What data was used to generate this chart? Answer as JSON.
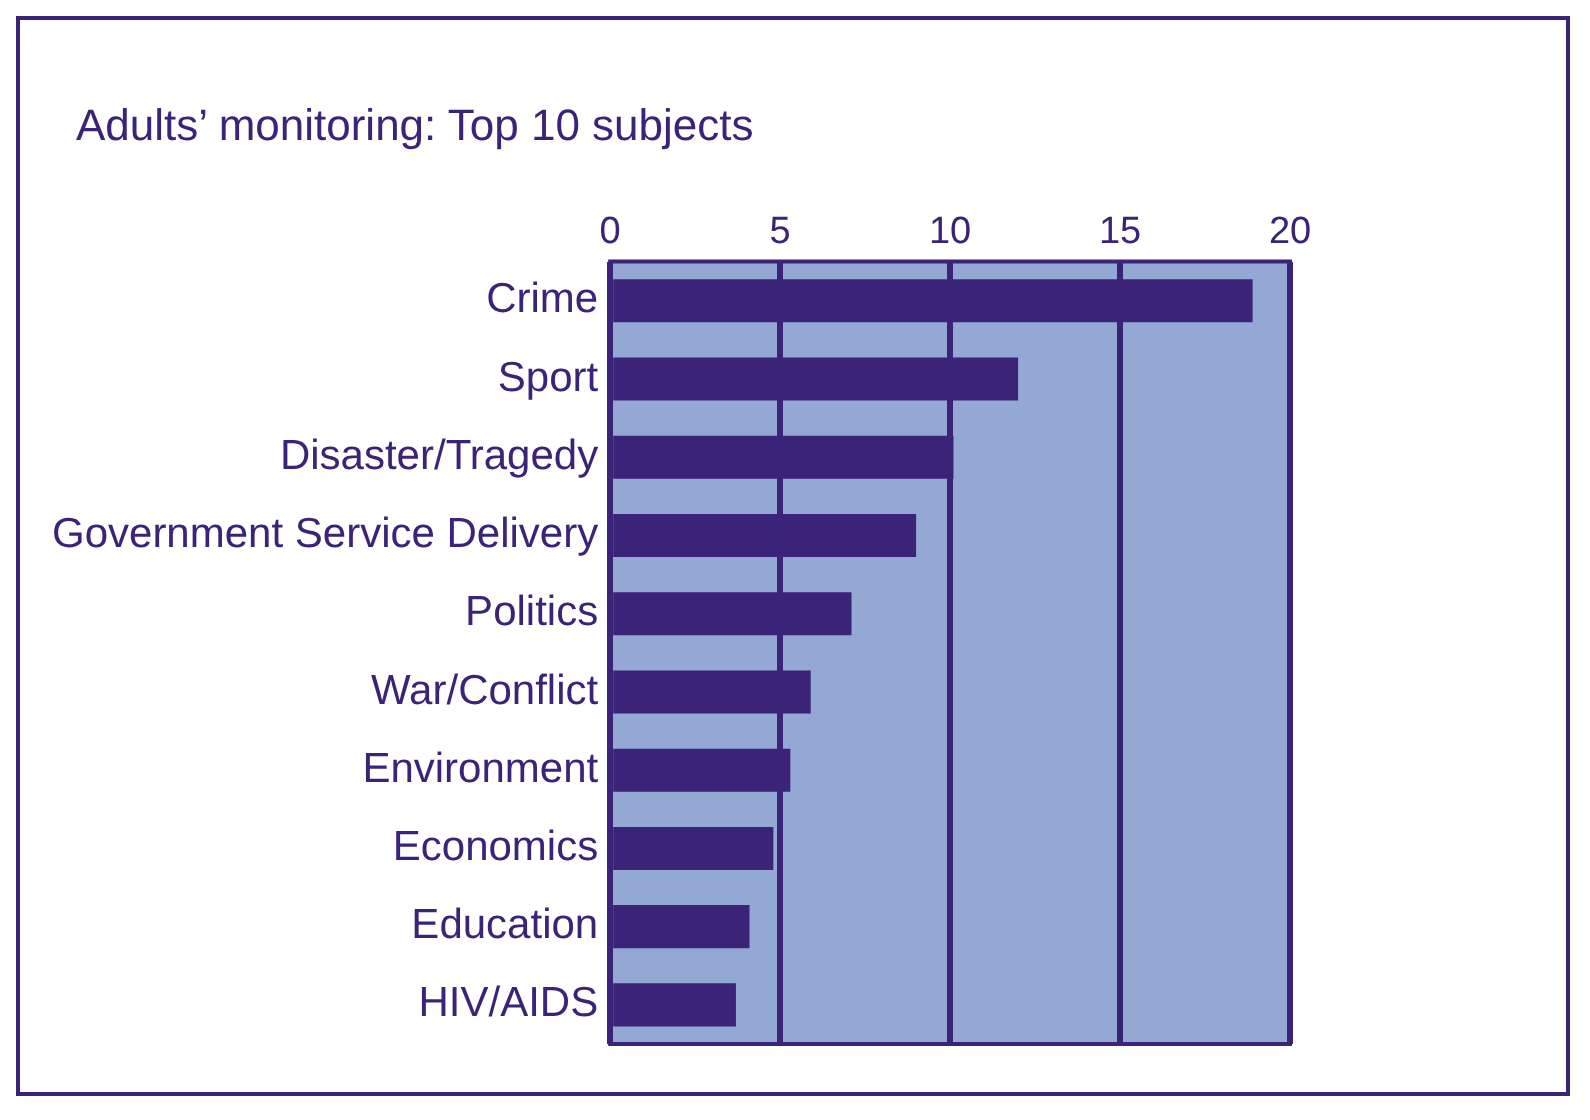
{
  "chart_data": {
    "type": "bar",
    "title": "Adults’ monitoring: Top 10 subjects",
    "orientation": "horizontal",
    "categories": [
      "Crime",
      "Sport",
      "Disaster/Tragedy",
      "Government Service Delivery",
      "Politics",
      "War/Conflict",
      "Environment",
      "Economics",
      "Education",
      "HIV/AIDS"
    ],
    "values": [
      18.9,
      12.0,
      10.1,
      9.0,
      7.1,
      5.9,
      5.3,
      4.8,
      4.1,
      3.7
    ],
    "color": "#3c237a",
    "xlim": [
      0,
      20
    ],
    "xticks": [
      0,
      5,
      10,
      15,
      20
    ],
    "grid": "x"
  }
}
